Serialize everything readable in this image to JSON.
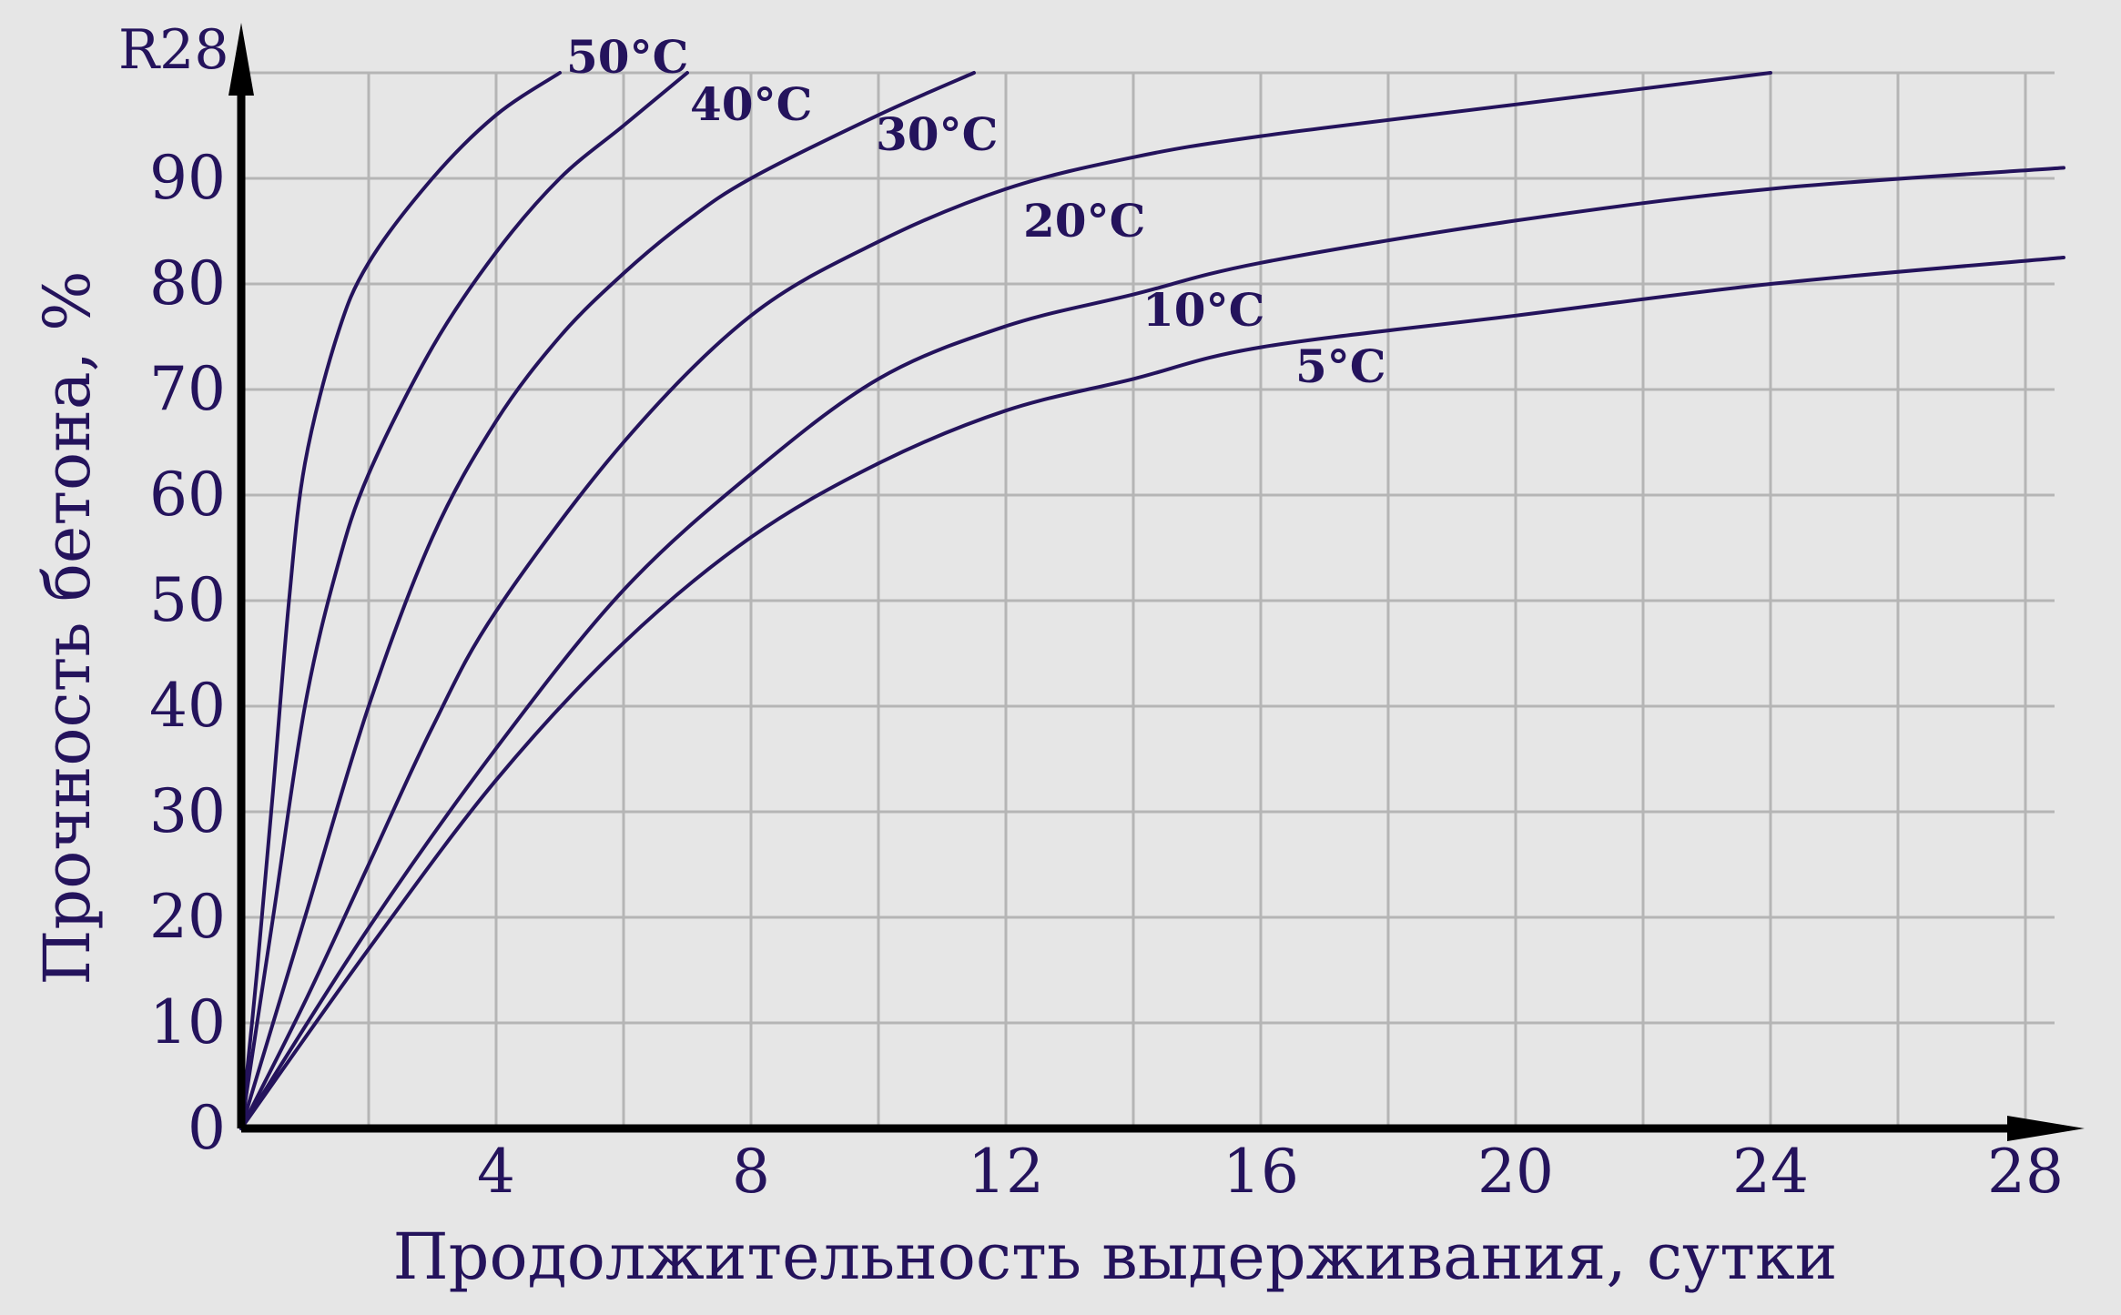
{
  "chart_data": {
    "type": "line",
    "title": "",
    "xlabel": "Продолжительность выдерживания, сутки",
    "ylabel": "Прочность бетона, %",
    "y_axis_top_label": "R28",
    "xlim": [
      0,
      28.6
    ],
    "ylim": [
      0,
      100
    ],
    "x_ticks": [
      4,
      8,
      12,
      16,
      20,
      24,
      28
    ],
    "y_ticks": [
      0,
      10,
      20,
      30,
      40,
      50,
      60,
      70,
      80,
      90
    ],
    "grid": true,
    "series": [
      {
        "name": "50°C",
        "points": [
          [
            0,
            0
          ],
          [
            0.25,
            15
          ],
          [
            0.5,
            32
          ],
          [
            0.75,
            50
          ],
          [
            1,
            63
          ],
          [
            1.5,
            75
          ],
          [
            2,
            82
          ],
          [
            3,
            90
          ],
          [
            4,
            96
          ],
          [
            5,
            100
          ]
        ]
      },
      {
        "name": "40°C",
        "points": [
          [
            0,
            0
          ],
          [
            0.5,
            20
          ],
          [
            1,
            40
          ],
          [
            1.5,
            53
          ],
          [
            2,
            62
          ],
          [
            3,
            74
          ],
          [
            4,
            83
          ],
          [
            5,
            90
          ],
          [
            6,
            95
          ],
          [
            7,
            100
          ]
        ]
      },
      {
        "name": "30°C",
        "points": [
          [
            0,
            0
          ],
          [
            1,
            20
          ],
          [
            2,
            40
          ],
          [
            3,
            56
          ],
          [
            4,
            67
          ],
          [
            5,
            75
          ],
          [
            6,
            81
          ],
          [
            7,
            86
          ],
          [
            8,
            90
          ],
          [
            10,
            96
          ],
          [
            11.5,
            100
          ]
        ]
      },
      {
        "name": "20°C",
        "points": [
          [
            0,
            0
          ],
          [
            1,
            12
          ],
          [
            2,
            25
          ],
          [
            3,
            38
          ],
          [
            4,
            49
          ],
          [
            6,
            65
          ],
          [
            8,
            77
          ],
          [
            10,
            84
          ],
          [
            12,
            89
          ],
          [
            14,
            92
          ],
          [
            16,
            94
          ],
          [
            20,
            97
          ],
          [
            24,
            100
          ]
        ]
      },
      {
        "name": "10°C",
        "points": [
          [
            0,
            0
          ],
          [
            2,
            19
          ],
          [
            4,
            36
          ],
          [
            6,
            51
          ],
          [
            8,
            62
          ],
          [
            10,
            71
          ],
          [
            12,
            76
          ],
          [
            14,
            79
          ],
          [
            16,
            82
          ],
          [
            20,
            86
          ],
          [
            24,
            89
          ],
          [
            28.6,
            91
          ]
        ]
      },
      {
        "name": "5°C",
        "points": [
          [
            0,
            0
          ],
          [
            2,
            17
          ],
          [
            4,
            33
          ],
          [
            6,
            46
          ],
          [
            8,
            56
          ],
          [
            10,
            63
          ],
          [
            12,
            68
          ],
          [
            14,
            71
          ],
          [
            16,
            74
          ],
          [
            20,
            77
          ],
          [
            24,
            80
          ],
          [
            28.6,
            82.5
          ]
        ]
      }
    ]
  }
}
